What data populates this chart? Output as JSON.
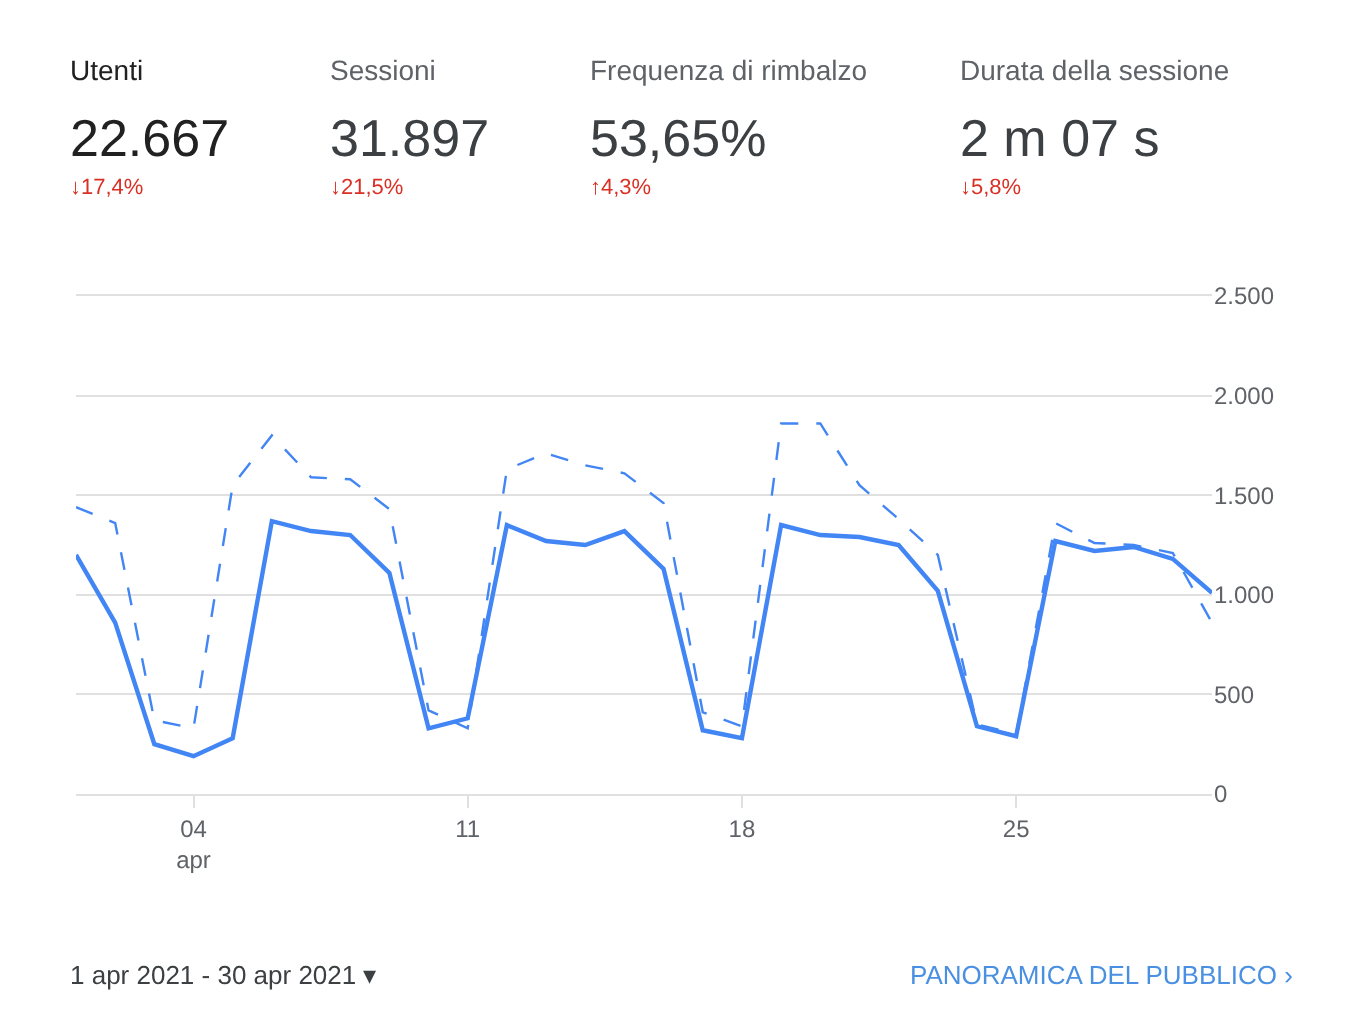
{
  "chart_data": {
    "type": "line",
    "x": [
      "2021-04-01",
      "2021-04-02",
      "2021-04-03",
      "2021-04-04",
      "2021-04-05",
      "2021-04-06",
      "2021-04-07",
      "2021-04-08",
      "2021-04-09",
      "2021-04-10",
      "2021-04-11",
      "2021-04-12",
      "2021-04-13",
      "2021-04-14",
      "2021-04-15",
      "2021-04-16",
      "2021-04-17",
      "2021-04-18",
      "2021-04-19",
      "2021-04-20",
      "2021-04-21",
      "2021-04-22",
      "2021-04-23",
      "2021-04-24",
      "2021-04-25",
      "2021-04-26",
      "2021-04-27",
      "2021-04-28",
      "2021-04-29",
      "2021-04-30"
    ],
    "series": [
      {
        "color": "#4285f4",
        "line_style": "solid",
        "values": [
          1200,
          860,
          250,
          190,
          280,
          1370,
          1320,
          1300,
          1110,
          330,
          380,
          1350,
          1270,
          1250,
          1320,
          1130,
          320,
          280,
          1350,
          1300,
          1290,
          1250,
          1020,
          340,
          290,
          1270,
          1220,
          1240,
          1180,
          1010
        ]
      },
      {
        "color": "#4285f4",
        "line_style": "dashed",
        "values": [
          1440,
          1360,
          370,
          330,
          1550,
          1800,
          1590,
          1580,
          1430,
          420,
          330,
          1630,
          1710,
          1650,
          1610,
          1460,
          410,
          340,
          1860,
          1860,
          1550,
          1380,
          1200,
          350,
          300,
          1360,
          1260,
          1250,
          1210,
          860
        ]
      }
    ],
    "xlim": [
      "2021-04-01",
      "2021-04-30"
    ],
    "xticks": [
      {
        "value": "2021-04-04",
        "label": "04\napr"
      },
      {
        "value": "2021-04-11",
        "label": "11"
      },
      {
        "value": "2021-04-18",
        "label": "18"
      },
      {
        "value": "2021-04-25",
        "label": "25"
      }
    ],
    "ylim": [
      0,
      2500
    ],
    "yticks": [
      {
        "value": 0,
        "label": "0"
      },
      {
        "value": 500,
        "label": "500"
      },
      {
        "value": 1000,
        "label": "1.000"
      },
      {
        "value": 1500,
        "label": "1.500"
      },
      {
        "value": 2000,
        "label": "2.000"
      },
      {
        "value": 2500,
        "label": "2.500"
      }
    ],
    "grid": "y",
    "marker": "none",
    "annotations": [
      "Utenti",
      "22.667",
      "↓17,4%",
      "Sessioni",
      "31.897",
      "↓21,5%",
      "Frequenza di rimbalzo",
      "53,65%",
      "↑4,3%",
      "Durata della sessione",
      "2 m 07 s",
      "↓5,8%",
      "1 apr 2021 - 30 apr 2021 ▾",
      "PANORAMICA DEL PUBBLICO ›"
    ]
  }
}
